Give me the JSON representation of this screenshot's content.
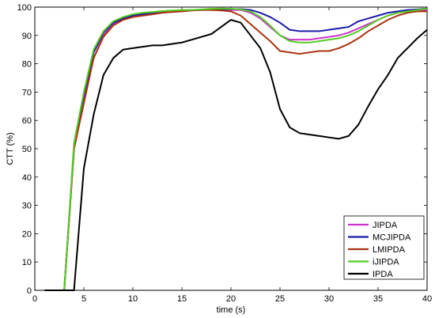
{
  "chart_data": {
    "type": "line",
    "xlabel": "time (s)",
    "ylabel": "CTT (%)",
    "xlim": [
      0,
      40
    ],
    "ylim": [
      0,
      100
    ],
    "xticks": [
      "0",
      "5",
      "10",
      "15",
      "20",
      "25",
      "30",
      "35",
      "40"
    ],
    "yticks": [
      "0",
      "10",
      "20",
      "30",
      "40",
      "50",
      "60",
      "70",
      "80",
      "90",
      "100"
    ],
    "grid": false,
    "legend_position": "bottom-right",
    "x": [
      1,
      2,
      3,
      4,
      5,
      6,
      7,
      8,
      9,
      10,
      11,
      12,
      13,
      14,
      15,
      16,
      17,
      18,
      19,
      20,
      21,
      22,
      23,
      24,
      25,
      26,
      27,
      28,
      29,
      30,
      31,
      32,
      33,
      34,
      35,
      36,
      37,
      38,
      39,
      40
    ],
    "series": [
      {
        "name": "JIPDA",
        "color": "#cc33cc",
        "values": [
          0,
          0,
          0,
          50,
          67,
          82,
          90,
          94,
          96,
          96.5,
          97,
          97.5,
          98,
          98.3,
          98.5,
          98.8,
          99,
          99,
          99,
          99,
          99,
          98,
          96,
          93,
          90,
          88.5,
          88.5,
          88.5,
          89,
          89.5,
          90,
          91,
          92.5,
          94,
          95.5,
          97,
          98,
          98.5,
          99,
          99
        ]
      },
      {
        "name": "MCJIPDA",
        "color": "#1a1aaa",
        "values": [
          0,
          0,
          0,
          51,
          69,
          84,
          91,
          94.5,
          96,
          97,
          97.5,
          98,
          98.3,
          98.6,
          98.8,
          99,
          99,
          99.2,
          99.3,
          99.3,
          99.3,
          99,
          98,
          96.5,
          94.5,
          92,
          91.5,
          91.5,
          91.5,
          92,
          92.5,
          93,
          95,
          96,
          97,
          98,
          98.5,
          99,
          99.2,
          99.5
        ]
      },
      {
        "name": "LMIPDA",
        "color": "#aa3311",
        "values": [
          0,
          0,
          0,
          50,
          66,
          82,
          89.5,
          93.5,
          95.5,
          96.5,
          97,
          97.5,
          98,
          98.3,
          98.5,
          98.8,
          99,
          99,
          98.8,
          98.5,
          97,
          94,
          91,
          88,
          84.5,
          84,
          83.5,
          84,
          84.5,
          84.5,
          85.5,
          87,
          89,
          91.5,
          93.5,
          95.5,
          97,
          98,
          98.5,
          98.5
        ]
      },
      {
        "name": "iJIPDA",
        "color": "#55cc22",
        "values": [
          0,
          0,
          0,
          52,
          70,
          85,
          91.5,
          95,
          96.5,
          97.5,
          98,
          98.3,
          98.6,
          98.8,
          99,
          99,
          99.2,
          99.4,
          99.5,
          99.4,
          99.2,
          98.5,
          96.5,
          93.5,
          90,
          88,
          87.5,
          87.5,
          88,
          88.5,
          89,
          90,
          91.5,
          93.5,
          95.5,
          97,
          98,
          98.5,
          99,
          99.5
        ]
      },
      {
        "name": "IPDA",
        "color": "#000000",
        "values": [
          0,
          0,
          0,
          0,
          43,
          62,
          76,
          82,
          85,
          85.5,
          86,
          86.5,
          86.5,
          87,
          87.5,
          88.5,
          89.5,
          90.5,
          93,
          95.5,
          94.5,
          90,
          85.5,
          77,
          64,
          57.5,
          55.5,
          55,
          54.5,
          54,
          53.5,
          54.5,
          58.5,
          65,
          71,
          76,
          82,
          85.5,
          89,
          92
        ]
      }
    ]
  }
}
